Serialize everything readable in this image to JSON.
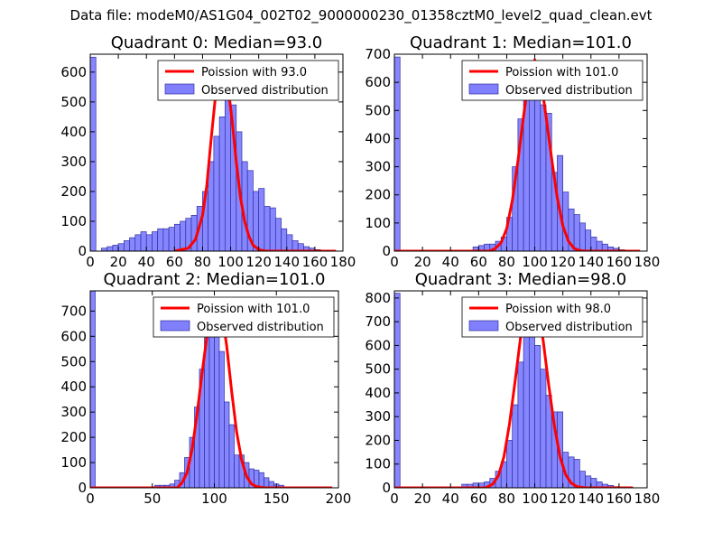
{
  "suptitle": "Data file: modeM0/AS1G04_002T02_9000000230_01358cztM0_level2_quad_clean.evt",
  "colors": {
    "bar_fill": "#8080ff",
    "bar_stroke": "#3030a0",
    "poisson_line": "#ff0000",
    "legend_bar": "#8080ff"
  },
  "chart_data": [
    {
      "type": "bar",
      "title": "Quadrant 0: Median=93.0",
      "median": 93.0,
      "xlim": [
        0,
        180
      ],
      "ylim": [
        0,
        660
      ],
      "xticks": [
        0,
        20,
        40,
        60,
        80,
        100,
        120,
        140,
        160,
        180
      ],
      "yticks": [
        0,
        100,
        200,
        300,
        400,
        500,
        600
      ],
      "legend": [
        "Poission with 93.0",
        "Observed distribution"
      ],
      "legend_position": "top-right",
      "bin_width": 4,
      "bins": [
        [
          0,
          650
        ],
        [
          8,
          10
        ],
        [
          12,
          15
        ],
        [
          16,
          20
        ],
        [
          20,
          25
        ],
        [
          24,
          35
        ],
        [
          28,
          45
        ],
        [
          32,
          55
        ],
        [
          36,
          65
        ],
        [
          40,
          55
        ],
        [
          44,
          65
        ],
        [
          48,
          75
        ],
        [
          52,
          75
        ],
        [
          56,
          80
        ],
        [
          60,
          90
        ],
        [
          64,
          100
        ],
        [
          68,
          110
        ],
        [
          72,
          120
        ],
        [
          76,
          150
        ],
        [
          80,
          200
        ],
        [
          84,
          300
        ],
        [
          88,
          385
        ],
        [
          92,
          450
        ],
        [
          96,
          600
        ],
        [
          100,
          490
        ],
        [
          104,
          400
        ],
        [
          108,
          300
        ],
        [
          112,
          270
        ],
        [
          116,
          200
        ],
        [
          120,
          210
        ],
        [
          124,
          150
        ],
        [
          128,
          145
        ],
        [
          132,
          110
        ],
        [
          136,
          75
        ],
        [
          140,
          55
        ],
        [
          144,
          35
        ],
        [
          148,
          25
        ],
        [
          152,
          15
        ],
        [
          156,
          10
        ],
        [
          160,
          5
        ],
        [
          168,
          3
        ]
      ],
      "poisson_x": [
        60,
        70,
        75,
        80,
        83,
        86,
        89,
        92,
        95,
        98,
        101,
        104,
        107,
        110,
        113,
        116,
        120,
        125,
        130,
        140,
        175
      ],
      "poisson_y": [
        0,
        10,
        40,
        120,
        220,
        370,
        510,
        610,
        620,
        560,
        440,
        300,
        180,
        100,
        50,
        20,
        5,
        0,
        0,
        0,
        0
      ],
      "poisson_start": 0
    },
    {
      "type": "bar",
      "title": "Quadrant 1: Median=101.0",
      "median": 101.0,
      "xlim": [
        0,
        180
      ],
      "ylim": [
        0,
        700
      ],
      "xticks": [
        0,
        20,
        40,
        60,
        80,
        100,
        120,
        140,
        160,
        180
      ],
      "yticks": [
        0,
        100,
        200,
        300,
        400,
        500,
        600,
        700
      ],
      "legend": [
        "Poission with 101.0",
        "Observed distribution"
      ],
      "legend_position": "top-right",
      "bin_width": 4,
      "bins": [
        [
          0,
          690
        ],
        [
          56,
          15
        ],
        [
          60,
          20
        ],
        [
          64,
          25
        ],
        [
          68,
          25
        ],
        [
          72,
          35
        ],
        [
          76,
          50
        ],
        [
          80,
          120
        ],
        [
          84,
          300
        ],
        [
          88,
          470
        ],
        [
          92,
          620
        ],
        [
          96,
          640
        ],
        [
          100,
          540
        ],
        [
          104,
          520
        ],
        [
          108,
          490
        ],
        [
          112,
          280
        ],
        [
          116,
          340
        ],
        [
          120,
          210
        ],
        [
          124,
          150
        ],
        [
          128,
          130
        ],
        [
          132,
          100
        ],
        [
          136,
          75
        ],
        [
          140,
          50
        ],
        [
          144,
          35
        ],
        [
          148,
          25
        ],
        [
          152,
          15
        ],
        [
          156,
          10
        ],
        [
          160,
          5
        ]
      ],
      "poisson_x": [
        0,
        68,
        72,
        76,
        80,
        84,
        88,
        92,
        96,
        100,
        104,
        108,
        112,
        116,
        120,
        124,
        128,
        132,
        136,
        175
      ],
      "poisson_y": [
        0,
        0,
        10,
        30,
        80,
        180,
        320,
        480,
        620,
        680,
        620,
        480,
        330,
        190,
        90,
        35,
        10,
        2,
        0,
        0
      ],
      "poisson_start": 0
    },
    {
      "type": "bar",
      "title": "Quadrant 2: Median=101.0",
      "median": 101.0,
      "xlim": [
        0,
        200
      ],
      "ylim": [
        0,
        780
      ],
      "xticks": [
        0,
        50,
        100,
        150,
        200
      ],
      "yticks": [
        0,
        100,
        200,
        300,
        400,
        500,
        600,
        700
      ],
      "legend": [
        "Poission with 101.0",
        "Observed distribution"
      ],
      "legend_position": "top-right",
      "bin_width": 4,
      "bins": [
        [
          0,
          780
        ],
        [
          52,
          10
        ],
        [
          56,
          10
        ],
        [
          60,
          10
        ],
        [
          64,
          15
        ],
        [
          68,
          30
        ],
        [
          72,
          60
        ],
        [
          76,
          120
        ],
        [
          80,
          200
        ],
        [
          84,
          320
        ],
        [
          88,
          470
        ],
        [
          92,
          620
        ],
        [
          96,
          700
        ],
        [
          100,
          660
        ],
        [
          104,
          540
        ],
        [
          108,
          340
        ],
        [
          112,
          250
        ],
        [
          116,
          130
        ],
        [
          120,
          130
        ],
        [
          124,
          100
        ],
        [
          128,
          75
        ],
        [
          132,
          70
        ],
        [
          136,
          60
        ],
        [
          140,
          40
        ],
        [
          144,
          25
        ],
        [
          148,
          15
        ],
        [
          152,
          10
        ]
      ],
      "poisson_x": [
        0,
        70,
        74,
        78,
        82,
        86,
        90,
        94,
        98,
        102,
        106,
        110,
        114,
        118,
        122,
        126,
        130,
        134,
        140,
        195
      ],
      "poisson_y": [
        0,
        0,
        20,
        60,
        150,
        290,
        450,
        600,
        720,
        750,
        700,
        560,
        380,
        220,
        110,
        45,
        15,
        5,
        0,
        0
      ],
      "poisson_start": 0
    },
    {
      "type": "bar",
      "title": "Quadrant 3: Median=98.0",
      "median": 98.0,
      "xlim": [
        0,
        180
      ],
      "ylim": [
        0,
        830
      ],
      "xticks": [
        0,
        20,
        40,
        60,
        80,
        100,
        120,
        140,
        160,
        180
      ],
      "yticks": [
        0,
        100,
        200,
        300,
        400,
        500,
        600,
        700,
        800
      ],
      "legend": [
        "Poission with 98.0",
        "Observed distribution"
      ],
      "legend_position": "top-right",
      "bin_width": 4,
      "bins": [
        [
          0,
          820
        ],
        [
          48,
          15
        ],
        [
          52,
          15
        ],
        [
          56,
          20
        ],
        [
          60,
          20
        ],
        [
          64,
          25
        ],
        [
          68,
          40
        ],
        [
          72,
          70
        ],
        [
          76,
          110
        ],
        [
          80,
          200
        ],
        [
          84,
          350
        ],
        [
          88,
          530
        ],
        [
          92,
          780
        ],
        [
          96,
          780
        ],
        [
          100,
          600
        ],
        [
          104,
          500
        ],
        [
          108,
          390
        ],
        [
          112,
          320
        ],
        [
          116,
          320
        ],
        [
          120,
          150
        ],
        [
          124,
          130
        ],
        [
          128,
          120
        ],
        [
          132,
          70
        ],
        [
          136,
          50
        ],
        [
          140,
          40
        ],
        [
          144,
          25
        ],
        [
          148,
          15
        ],
        [
          152,
          10
        ],
        [
          156,
          5
        ]
      ],
      "poisson_x": [
        0,
        65,
        70,
        74,
        78,
        82,
        86,
        90,
        94,
        98,
        102,
        106,
        110,
        114,
        118,
        122,
        126,
        130,
        136,
        170
      ],
      "poisson_y": [
        0,
        0,
        15,
        50,
        130,
        270,
        450,
        640,
        770,
        800,
        760,
        620,
        430,
        260,
        130,
        55,
        20,
        5,
        0,
        0
      ],
      "poisson_start": 0
    }
  ]
}
